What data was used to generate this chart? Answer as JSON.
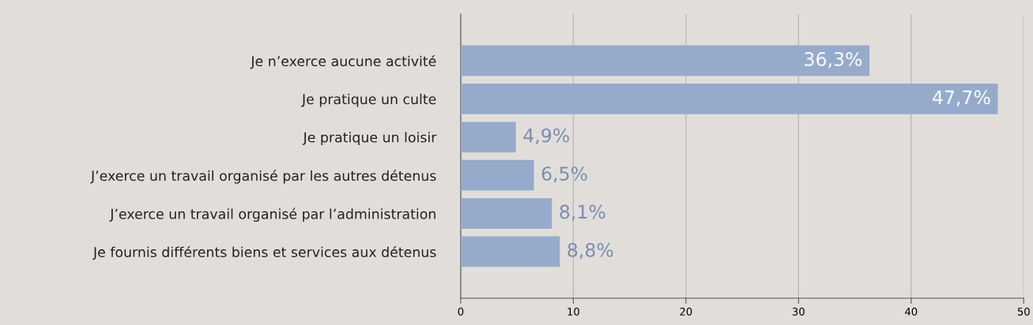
{
  "chart_data": {
    "type": "bar",
    "orientation": "horizontal",
    "categories": [
      "Je n’exerce aucune activité",
      "Je pratique un culte",
      "Je pratique un loisir",
      "J’exerce un travail organisé par les autres détenus",
      "J’exerce un travail organisé par l’administration",
      "Je fournis différents biens et services aux détenus"
    ],
    "values": [
      36.3,
      47.7,
      4.9,
      6.5,
      8.1,
      8.8
    ],
    "value_labels": [
      "36,3%",
      "47,7%",
      "4,9%",
      "6,5%",
      "8,1%",
      "8,8%"
    ],
    "color": "#96aacb",
    "xlim": [
      0,
      50
    ],
    "xticks": [
      0,
      10,
      20,
      30,
      40,
      50
    ],
    "grid": "x",
    "legend": false
  }
}
